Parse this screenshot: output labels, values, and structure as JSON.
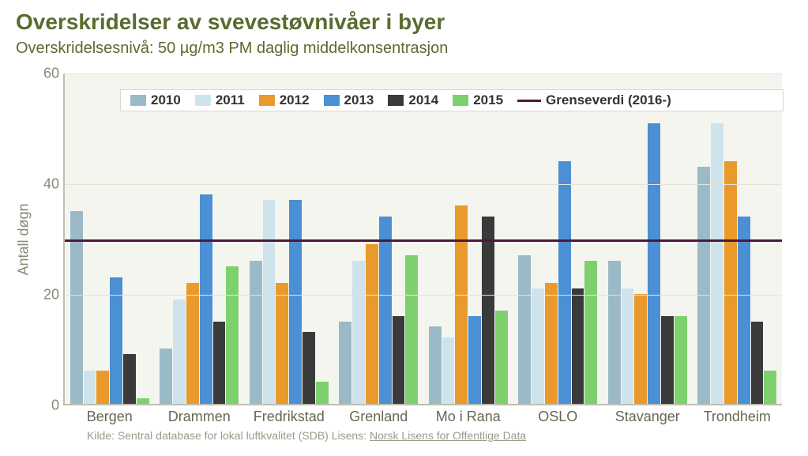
{
  "title": "Overskridelser av svevestøvnivåer i byer",
  "subtitle": "Overskridelsesnivå: 50 µg/m3 PM daglig middelkonsentrasjon",
  "ylabel": "Antall døgn",
  "chart": {
    "type": "bar",
    "background_color": "#f5f5f0",
    "grid_color": "#e3e3da",
    "axis_color": "#bfbfb2",
    "text_color": "#888877",
    "title_color": "#5a6b2f",
    "title_fontsize": 28,
    "subtitle_fontsize": 20,
    "label_fontsize": 18,
    "ylim": [
      0,
      60
    ],
    "ytick_step": 20,
    "yticks": [
      0,
      20,
      40,
      60
    ],
    "threshold": {
      "value": 30,
      "label": "Grenseverdi (2016-)",
      "color": "#4b1a3a",
      "width": 3
    },
    "series": [
      {
        "name": "2010",
        "color": "#9bbac8"
      },
      {
        "name": "2011",
        "color": "#cfe3ec"
      },
      {
        "name": "2012",
        "color": "#e99a2b"
      },
      {
        "name": "2013",
        "color": "#4b8fd4"
      },
      {
        "name": "2014",
        "color": "#3a3a3a"
      },
      {
        "name": "2015",
        "color": "#7ed06e"
      }
    ],
    "categories": [
      "Bergen",
      "Drammen",
      "Fredrikstad",
      "Grenland",
      "Mo i Rana",
      "OSLO",
      "Stavanger",
      "Trondheim"
    ],
    "data": {
      "Bergen": [
        35,
        6,
        6,
        23,
        9,
        1
      ],
      "Drammen": [
        10,
        19,
        22,
        38,
        15,
        25
      ],
      "Fredrikstad": [
        26,
        37,
        22,
        37,
        13,
        4
      ],
      "Grenland": [
        15,
        26,
        29,
        34,
        16,
        27
      ],
      "Mo i Rana": [
        14,
        12,
        36,
        16,
        34,
        17
      ],
      "OSLO": [
        27,
        21,
        22,
        44,
        21,
        26
      ],
      "Stavanger": [
        26,
        21,
        20,
        51,
        16,
        16
      ],
      "Trondheim": [
        43,
        51,
        44,
        34,
        15,
        6
      ]
    },
    "bar_gap": 1,
    "group_padding_pct": 6
  },
  "source": {
    "prefix": "Kilde: ",
    "text": "Sentral database for lokal luftkvalitet (SDB)",
    "license_prefix": "   Lisens: ",
    "license_text": "Norsk Lisens for Offentlige Data"
  }
}
